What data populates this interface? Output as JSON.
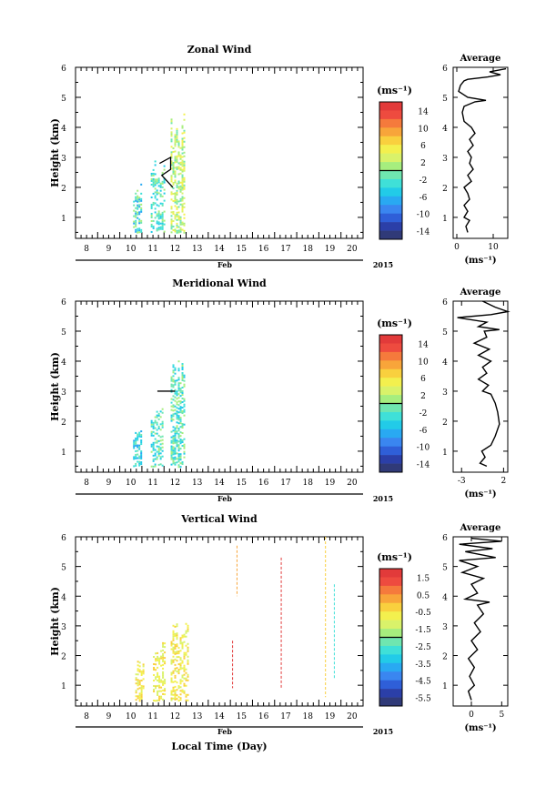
{
  "chart_data": [
    {
      "type": "heatmap",
      "title": "Zonal Wind",
      "ylabel": "Height (km)",
      "xlabel": "Feb",
      "year": "2015",
      "ylim": [
        0.3,
        6
      ],
      "yticks": [
        "1",
        "2",
        "3",
        "4",
        "5",
        "6"
      ],
      "xticks": [
        "8",
        "9",
        "10",
        "11",
        "12",
        "13",
        "14",
        "15",
        "16",
        "17",
        "18",
        "19",
        "20"
      ],
      "colorbar": {
        "unit": "(ms⁻¹)",
        "ticks": [
          "14",
          "10",
          "6",
          "2",
          "-2",
          "-6",
          "-10",
          "-14"
        ],
        "range": [
          -16,
          16
        ]
      },
      "profile": {
        "title": "Average",
        "xlabel": "(ms⁻¹)",
        "xticks": [
          "0",
          "10"
        ],
        "xlim": [
          -1,
          14
        ],
        "points": [
          [
            3.0,
            0.5
          ],
          [
            2.5,
            0.7
          ],
          [
            3.5,
            0.9
          ],
          [
            2.0,
            1.0
          ],
          [
            3.0,
            1.2
          ],
          [
            2.0,
            1.4
          ],
          [
            3.5,
            1.6
          ],
          [
            3.0,
            1.8
          ],
          [
            2.0,
            2.0
          ],
          [
            4.0,
            2.2
          ],
          [
            3.0,
            2.4
          ],
          [
            4.5,
            2.6
          ],
          [
            3.5,
            2.8
          ],
          [
            4.0,
            3.0
          ],
          [
            3.0,
            3.2
          ],
          [
            4.5,
            3.4
          ],
          [
            3.5,
            3.6
          ],
          [
            5.0,
            3.8
          ],
          [
            4.0,
            4.0
          ],
          [
            2.0,
            4.2
          ],
          [
            1.5,
            4.5
          ],
          [
            2.0,
            4.7
          ],
          [
            5.0,
            4.85
          ],
          [
            8.0,
            4.9
          ],
          [
            3.0,
            5.0
          ],
          [
            0.5,
            5.2
          ],
          [
            1.0,
            5.4
          ],
          [
            2.0,
            5.55
          ],
          [
            3.0,
            5.6
          ],
          [
            8.5,
            5.68
          ],
          [
            12.0,
            5.75
          ],
          [
            9.0,
            5.85
          ],
          [
            13.5,
            5.95
          ]
        ]
      }
    },
    {
      "type": "heatmap",
      "title": "Meridional Wind",
      "ylabel": "Height (km)",
      "xlabel": "Feb",
      "year": "2015",
      "ylim": [
        0.3,
        6
      ],
      "yticks": [
        "1",
        "2",
        "3",
        "4",
        "5",
        "6"
      ],
      "xticks": [
        "8",
        "9",
        "10",
        "11",
        "12",
        "13",
        "14",
        "15",
        "16",
        "17",
        "18",
        "19",
        "20"
      ],
      "colorbar": {
        "unit": "(ms⁻¹)",
        "ticks": [
          "14",
          "10",
          "6",
          "2",
          "-2",
          "-6",
          "-10",
          "-14"
        ],
        "range": [
          -16,
          16
        ]
      },
      "profile": {
        "title": "Average",
        "xlabel": "(ms⁻¹)",
        "xticks": [
          "-3",
          "2"
        ],
        "xlim": [
          -4,
          2.5
        ],
        "points": [
          [
            0.0,
            0.5
          ],
          [
            -0.8,
            0.6
          ],
          [
            -0.2,
            0.8
          ],
          [
            -0.6,
            1.0
          ],
          [
            0.5,
            1.2
          ],
          [
            1.0,
            1.5
          ],
          [
            1.5,
            1.9
          ],
          [
            1.3,
            2.3
          ],
          [
            1.0,
            2.6
          ],
          [
            0.5,
            2.9
          ],
          [
            -0.5,
            3.0
          ],
          [
            0.2,
            3.2
          ],
          [
            -1.0,
            3.4
          ],
          [
            0.0,
            3.6
          ],
          [
            -0.5,
            3.8
          ],
          [
            0.5,
            4.0
          ],
          [
            -1.0,
            4.2
          ],
          [
            0.3,
            4.4
          ],
          [
            -1.5,
            4.6
          ],
          [
            0.0,
            4.8
          ],
          [
            -0.3,
            5.0
          ],
          [
            1.5,
            5.05
          ],
          [
            -1.0,
            5.15
          ],
          [
            0.0,
            5.3
          ],
          [
            -3.5,
            5.45
          ],
          [
            0.5,
            5.55
          ],
          [
            2.5,
            5.65
          ],
          [
            1.0,
            5.8
          ],
          [
            -0.5,
            6.0
          ]
        ]
      }
    },
    {
      "type": "heatmap",
      "title": "Vertical Wind",
      "ylabel": "Height (km)",
      "xlabel": "Feb",
      "year": "2015",
      "xaxis_title": "Local Time (Day)",
      "ylim": [
        0.3,
        6
      ],
      "yticks": [
        "1",
        "2",
        "3",
        "4",
        "5",
        "6"
      ],
      "xticks": [
        "8",
        "9",
        "10",
        "11",
        "12",
        "13",
        "14",
        "15",
        "16",
        "17",
        "18",
        "19",
        "20"
      ],
      "colorbar": {
        "unit": "(ms⁻¹)",
        "ticks": [
          "1.5",
          "0.5",
          "-0.5",
          "-1.5",
          "-2.5",
          "-3.5",
          "-4.5",
          "-5.5"
        ],
        "range": [
          -6,
          2
        ]
      },
      "profile": {
        "title": "Average",
        "xlabel": "(ms⁻¹)",
        "xticks": [
          "0",
          "5"
        ],
        "xlim": [
          -3,
          6
        ],
        "points": [
          [
            0.0,
            0.5
          ],
          [
            -0.5,
            0.8
          ],
          [
            0.5,
            1.0
          ],
          [
            -0.3,
            1.3
          ],
          [
            0.5,
            1.6
          ],
          [
            -0.5,
            1.9
          ],
          [
            1.0,
            2.2
          ],
          [
            0.0,
            2.5
          ],
          [
            1.5,
            2.8
          ],
          [
            0.5,
            3.1
          ],
          [
            2.0,
            3.4
          ],
          [
            1.0,
            3.7
          ],
          [
            3.0,
            3.8
          ],
          [
            -1.0,
            3.9
          ],
          [
            1.0,
            4.1
          ],
          [
            0.0,
            4.4
          ],
          [
            2.0,
            4.6
          ],
          [
            -1.5,
            4.8
          ],
          [
            1.0,
            5.0
          ],
          [
            -2.0,
            5.2
          ],
          [
            4.0,
            5.3
          ],
          [
            -1.0,
            5.5
          ],
          [
            3.5,
            5.6
          ],
          [
            -2.0,
            5.75
          ],
          [
            5.0,
            5.85
          ],
          [
            0.0,
            5.95
          ]
        ]
      }
    }
  ]
}
